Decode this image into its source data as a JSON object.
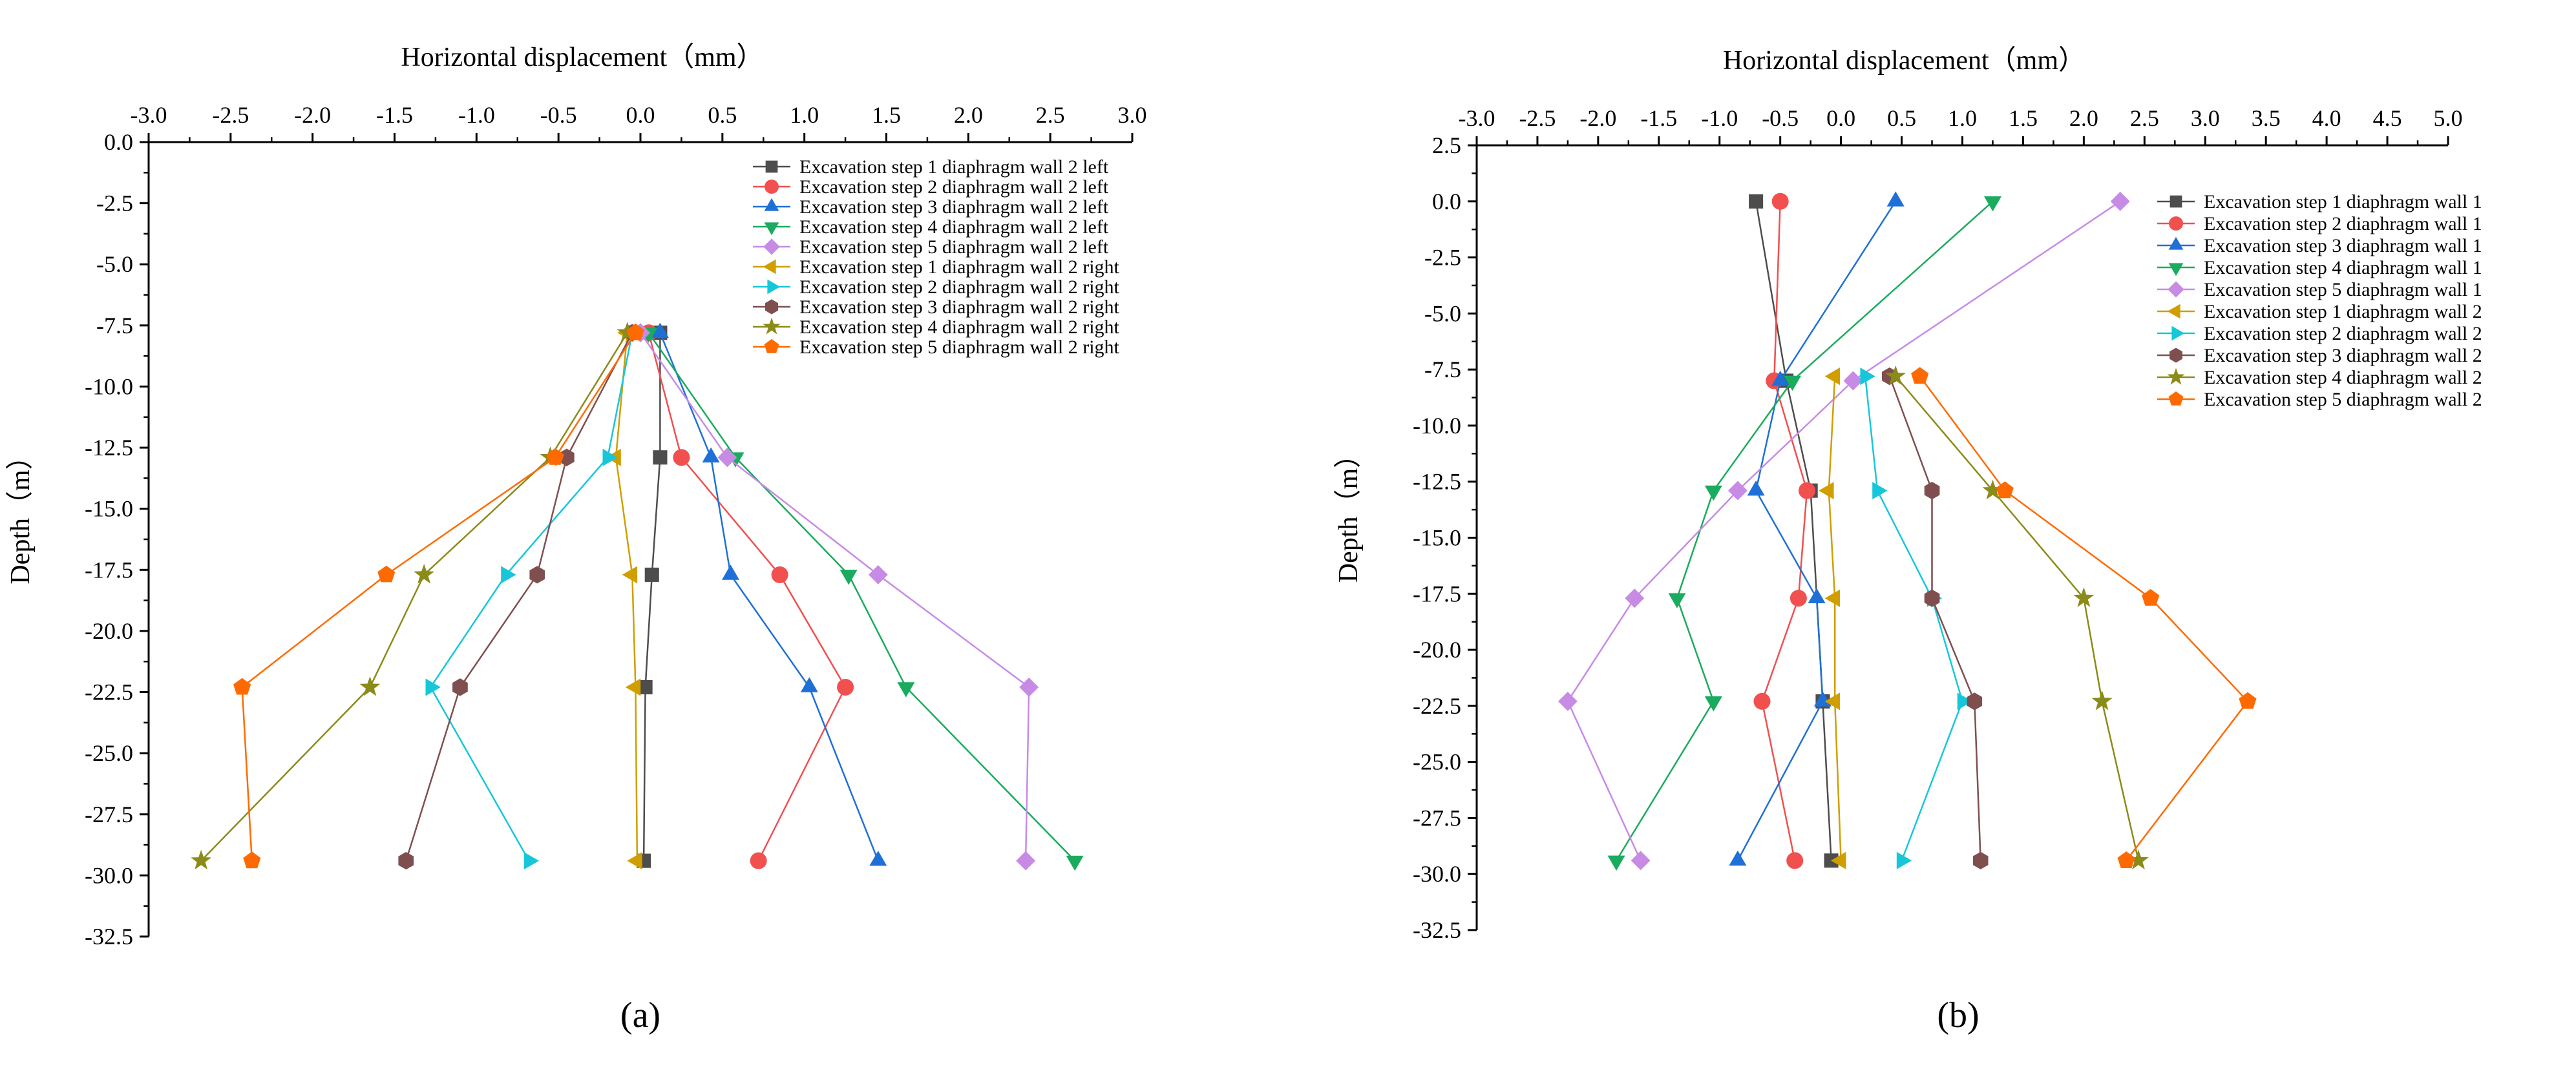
{
  "chart_data": [
    {
      "panel_label": "(a)",
      "type": "scatter",
      "title": "",
      "xlabel": "Horizontal displacement（mm）",
      "ylabel": "Depth（m）",
      "xlim": [
        -3.0,
        3.0
      ],
      "ylim": [
        -32.5,
        0.0
      ],
      "x_ticks": [
        -3.0,
        -2.5,
        -2.0,
        -1.5,
        -1.0,
        -0.5,
        0.0,
        0.5,
        1.0,
        1.5,
        2.0,
        2.5,
        3.0
      ],
      "x_tick_labels": [
        "-3.0",
        "-2.5",
        "-2.0",
        "-1.5",
        "-1.0",
        "-0.5",
        "0.0",
        "0.5",
        "1.0",
        "1.5",
        "2.0",
        "2.5",
        "3.0"
      ],
      "y_ticks": [
        0.0,
        -2.5,
        -5.0,
        -7.5,
        -10.0,
        -12.5,
        -15.0,
        -17.5,
        -20.0,
        -22.5,
        -25.0,
        -27.5,
        -30.0,
        -32.5
      ],
      "y_tick_labels": [
        "0.0",
        "-2.5",
        "-5.0",
        "-7.5",
        "-10.0",
        "-12.5",
        "-15.0",
        "-17.5",
        "-20.0",
        "-22.5",
        "-25.0",
        "-27.5",
        "-30.0",
        "-32.5"
      ],
      "legend_position": "top-right",
      "depths": [
        -7.8,
        -12.9,
        -17.7,
        -22.3,
        -29.4
      ],
      "series": [
        {
          "name": "Excavation step 1 diaphragm wall 2 left",
          "color": "#4d4d4d",
          "marker": "square",
          "x": [
            0.12,
            0.12,
            0.07,
            0.03,
            0.02
          ]
        },
        {
          "name": "Excavation step 2 diaphragm wall 2 left",
          "color": "#f24f4f",
          "marker": "circle",
          "x": [
            0.05,
            0.25,
            0.85,
            1.25,
            0.72
          ]
        },
        {
          "name": "Excavation step 3 diaphragm wall 2 left",
          "color": "#1f70d6",
          "marker": "triangle-up",
          "x": [
            0.12,
            0.43,
            0.55,
            1.03,
            1.45
          ]
        },
        {
          "name": "Excavation step 4 diaphragm wall 2 left",
          "color": "#1aab5e",
          "marker": "triangle-down",
          "x": [
            0.05,
            0.58,
            1.27,
            1.62,
            2.65
          ]
        },
        {
          "name": "Excavation step 5 diaphragm wall 2 left",
          "color": "#c78be6",
          "marker": "diamond",
          "x": [
            0.0,
            0.53,
            1.45,
            2.37,
            2.35
          ]
        },
        {
          "name": "Excavation step 1 diaphragm wall 2 right",
          "color": "#d19e00",
          "marker": "triangle-left",
          "x": [
            -0.08,
            -0.15,
            -0.05,
            -0.03,
            -0.02
          ]
        },
        {
          "name": "Excavation step 2 diaphragm wall 2 right",
          "color": "#17c7d9",
          "marker": "triangle-right",
          "x": [
            -0.05,
            -0.2,
            -0.82,
            -1.28,
            -0.68
          ]
        },
        {
          "name": "Excavation step 3 diaphragm wall 2 right",
          "color": "#7f4f4f",
          "marker": "hexagon",
          "x": [
            -0.05,
            -0.45,
            -0.63,
            -1.1,
            -1.43
          ]
        },
        {
          "name": "Excavation step 4 diaphragm wall 2 right",
          "color": "#8b8b1a",
          "marker": "star",
          "x": [
            -0.08,
            -0.55,
            -1.32,
            -1.65,
            -2.68
          ]
        },
        {
          "name": "Excavation step 5 diaphragm wall 2 right",
          "color": "#ff6a00",
          "marker": "pentagon",
          "x": [
            -0.03,
            -0.52,
            -1.55,
            -2.43,
            -2.37
          ]
        }
      ]
    },
    {
      "panel_label": "(b)",
      "type": "scatter",
      "title": "",
      "xlabel": "Horizontal displacement（mm）",
      "ylabel": "Depth（m）",
      "xlim": [
        -3.0,
        5.0
      ],
      "ylim": [
        -32.5,
        2.5
      ],
      "x_ticks": [
        -3.0,
        -2.5,
        -2.0,
        -1.5,
        -1.0,
        -0.5,
        0.0,
        0.5,
        1.0,
        1.5,
        2.0,
        2.5,
        3.0,
        3.5,
        4.0,
        4.5,
        5.0
      ],
      "x_tick_labels": [
        "-3.0",
        "-2.5",
        "-2.0",
        "-1.5",
        "-1.0",
        "-0.5",
        "0.0",
        "0.5",
        "1.0",
        "1.5",
        "2.0",
        "2.5",
        "3.0",
        "3.5",
        "4.0",
        "4.5",
        "5.0"
      ],
      "y_ticks": [
        2.5,
        0.0,
        -2.5,
        -5.0,
        -7.5,
        -10.0,
        -12.5,
        -15.0,
        -17.5,
        -20.0,
        -22.5,
        -25.0,
        -27.5,
        -30.0,
        -32.5
      ],
      "y_tick_labels": [
        "2.5",
        "0.0",
        "-2.5",
        "-5.0",
        "-7.5",
        "-10.0",
        "-12.5",
        "-15.0",
        "-17.5",
        "-20.0",
        "-22.5",
        "-25.0",
        "-27.5",
        "-30.0",
        "-32.5"
      ],
      "legend_position": "top-right",
      "series": [
        {
          "name": "Excavation step 1 diaphragm wall 1",
          "color": "#4d4d4d",
          "marker": "square",
          "x": [
            -0.7,
            -0.45,
            -0.25,
            -0.15,
            -0.08
          ],
          "depths": [
            0.0,
            -8.0,
            -12.9,
            -22.3,
            -29.4
          ]
        },
        {
          "name": "Excavation step 2 diaphragm wall 1",
          "color": "#f24f4f",
          "marker": "circle",
          "x": [
            -0.5,
            -0.55,
            -0.28,
            -0.35,
            -0.65,
            -0.38
          ],
          "depths": [
            0.0,
            -8.0,
            -12.9,
            -17.7,
            -22.3,
            -29.4
          ]
        },
        {
          "name": "Excavation step 3 diaphragm wall 1",
          "color": "#1f70d6",
          "marker": "triangle-up",
          "x": [
            0.45,
            -0.5,
            -0.7,
            -0.2,
            -0.15,
            -0.85
          ],
          "depths": [
            0.0,
            -8.0,
            -12.9,
            -17.7,
            -22.3,
            -29.4
          ]
        },
        {
          "name": "Excavation step 4 diaphragm wall 1",
          "color": "#1aab5e",
          "marker": "triangle-down",
          "x": [
            1.25,
            -0.4,
            -1.05,
            -1.35,
            -1.05,
            -1.85
          ],
          "depths": [
            0.0,
            -8.0,
            -12.9,
            -17.7,
            -22.3,
            -29.4
          ]
        },
        {
          "name": "Excavation step 5 diaphragm wall 1",
          "color": "#c78be6",
          "marker": "diamond",
          "x": [
            2.3,
            0.1,
            -0.85,
            -1.7,
            -2.25,
            -1.65
          ],
          "depths": [
            0.0,
            -8.0,
            -12.9,
            -17.7,
            -22.3,
            -29.4
          ]
        },
        {
          "name": "Excavation step 1 diaphragm wall 2",
          "color": "#d19e00",
          "marker": "triangle-left",
          "x": [
            -0.05,
            -0.1,
            -0.05,
            -0.05,
            0.0
          ],
          "depths": [
            -7.8,
            -12.9,
            -17.7,
            -22.3,
            -29.4
          ]
        },
        {
          "name": "Excavation step 2 diaphragm wall 2",
          "color": "#17c7d9",
          "marker": "triangle-right",
          "x": [
            0.2,
            0.3,
            0.75,
            1.0,
            0.5
          ],
          "depths": [
            -7.8,
            -12.9,
            -17.7,
            -22.3,
            -29.4
          ]
        },
        {
          "name": "Excavation step 3 diaphragm wall 2",
          "color": "#7f4f4f",
          "marker": "hexagon",
          "x": [
            0.4,
            0.75,
            0.75,
            1.1,
            1.15
          ],
          "depths": [
            -7.8,
            -12.9,
            -17.7,
            -22.3,
            -29.4
          ]
        },
        {
          "name": "Excavation step 4 diaphragm wall 2",
          "color": "#8b8b1a",
          "marker": "star",
          "x": [
            0.45,
            1.25,
            2.0,
            2.15,
            2.45
          ],
          "depths": [
            -7.8,
            -12.9,
            -17.7,
            -22.3,
            -29.4
          ]
        },
        {
          "name": "Excavation step 5 diaphragm wall 2",
          "color": "#ff6a00",
          "marker": "pentagon",
          "x": [
            0.65,
            1.35,
            2.55,
            3.35,
            2.35
          ],
          "depths": [
            -7.8,
            -12.9,
            -17.7,
            -22.3,
            -29.4
          ]
        }
      ]
    }
  ]
}
